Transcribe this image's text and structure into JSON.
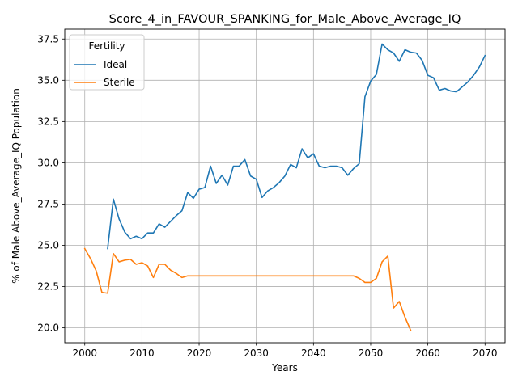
{
  "chart_data": {
    "type": "line",
    "title": "Score_4_in_FAVOUR_SPANKING_for_Male_Above_Average_IQ",
    "xlabel": "Years",
    "ylabel": "% of Male Above_Average_IQ Population",
    "xlim": [
      1996.5,
      2073.5
    ],
    "ylim": [
      19.1,
      38.1
    ],
    "x_ticks": [
      2000,
      2010,
      2020,
      2030,
      2040,
      2050,
      2060,
      2070
    ],
    "y_ticks": [
      20.0,
      22.5,
      25.0,
      27.5,
      30.0,
      32.5,
      35.0,
      37.5
    ],
    "x_tick_labels": [
      "2000",
      "2010",
      "2020",
      "2030",
      "2040",
      "2050",
      "2060",
      "2070"
    ],
    "y_tick_labels": [
      "20.0",
      "22.5",
      "25.0",
      "27.5",
      "30.0",
      "32.5",
      "35.0",
      "37.5"
    ],
    "grid": true,
    "legend": {
      "title": "Fertility",
      "placement": "upper-left"
    },
    "series": [
      {
        "name": "Ideal",
        "color": "#1f77b4",
        "x": [
          2004,
          2005,
          2006,
          2007,
          2008,
          2009,
          2010,
          2011,
          2012,
          2013,
          2014,
          2015,
          2016,
          2017,
          2018,
          2019,
          2020,
          2021,
          2022,
          2023,
          2024,
          2025,
          2026,
          2027,
          2028,
          2029,
          2030,
          2031,
          2032,
          2033,
          2034,
          2035,
          2036,
          2037,
          2038,
          2039,
          2040,
          2041,
          2042,
          2043,
          2044,
          2045,
          2046,
          2047,
          2048,
          2049,
          2050,
          2051,
          2052,
          2053,
          2054,
          2055,
          2056,
          2057,
          2058,
          2059,
          2060,
          2061,
          2062,
          2063,
          2064,
          2065,
          2066,
          2067,
          2068,
          2069,
          2070
        ],
        "values": [
          24.8,
          27.8,
          26.6,
          25.8,
          25.4,
          25.55,
          25.4,
          25.75,
          25.75,
          26.3,
          26.1,
          26.45,
          26.8,
          27.1,
          28.2,
          27.85,
          28.4,
          28.5,
          29.8,
          28.75,
          29.25,
          28.65,
          29.8,
          29.8,
          30.2,
          29.2,
          29.0,
          27.9,
          28.3,
          28.5,
          28.8,
          29.2,
          29.9,
          29.7,
          30.85,
          30.3,
          30.55,
          29.8,
          29.7,
          29.8,
          29.8,
          29.7,
          29.25,
          29.65,
          29.95,
          34.0,
          34.95,
          35.35,
          37.2,
          36.85,
          36.65,
          36.15,
          36.85,
          36.7,
          36.65,
          36.2,
          35.3,
          35.15,
          34.4,
          34.5,
          34.35,
          34.3,
          34.6,
          34.9,
          35.3,
          35.8,
          36.5
        ]
      },
      {
        "name": "Sterile",
        "color": "#ff7f0e",
        "x": [
          2000,
          2001,
          2002,
          2003,
          2004,
          2005,
          2006,
          2007,
          2008,
          2009,
          2010,
          2011,
          2012,
          2013,
          2014,
          2015,
          2016,
          2017,
          2018,
          2019,
          2020,
          2021,
          2022,
          2023,
          2024,
          2025,
          2026,
          2027,
          2028,
          2029,
          2030,
          2031,
          2032,
          2033,
          2034,
          2035,
          2036,
          2037,
          2038,
          2039,
          2040,
          2041,
          2042,
          2043,
          2044,
          2045,
          2046,
          2047,
          2048,
          2049,
          2050,
          2051,
          2052,
          2053,
          2054,
          2055,
          2056,
          2057
        ],
        "values": [
          24.8,
          24.2,
          23.45,
          22.15,
          22.1,
          24.5,
          24.0,
          24.1,
          24.15,
          23.85,
          23.95,
          23.75,
          23.05,
          23.85,
          23.85,
          23.5,
          23.3,
          23.05,
          23.15,
          23.15,
          23.15,
          23.15,
          23.15,
          23.15,
          23.15,
          23.15,
          23.15,
          23.15,
          23.15,
          23.15,
          23.15,
          23.15,
          23.15,
          23.15,
          23.15,
          23.15,
          23.15,
          23.15,
          23.15,
          23.15,
          23.15,
          23.15,
          23.15,
          23.15,
          23.15,
          23.15,
          23.15,
          23.15,
          23.0,
          22.75,
          22.75,
          23.0,
          24.0,
          24.35,
          21.2,
          21.6,
          20.65,
          19.85
        ]
      }
    ]
  }
}
